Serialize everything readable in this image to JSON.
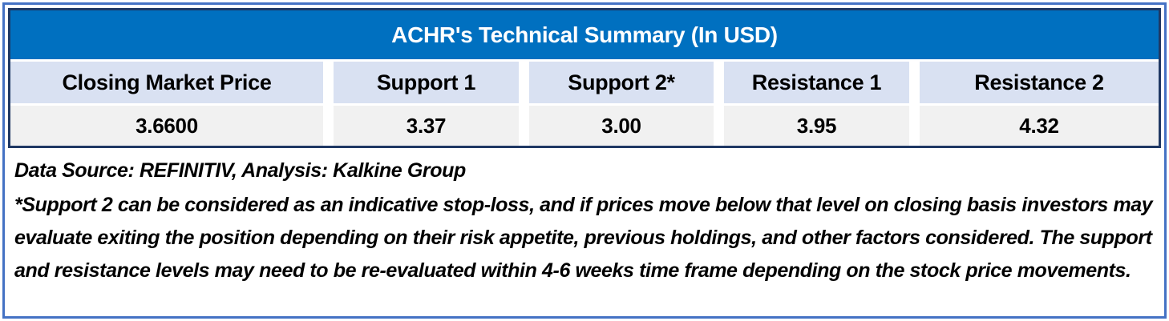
{
  "table": {
    "title": "ACHR's Technical Summary (In USD)",
    "columns": [
      {
        "header": "Closing Market Price",
        "value": "3.6600"
      },
      {
        "header": "Support 1",
        "value": "3.37"
      },
      {
        "header": "Support 2*",
        "value": "3.00"
      },
      {
        "header": "Resistance 1",
        "value": "3.95"
      },
      {
        "header": "Resistance 2",
        "value": "4.32"
      }
    ]
  },
  "notes": {
    "source_line": "Data Source: REFINITIV, Analysis: Kalkine Group",
    "disclaimer": "*Support 2 can be considered as an indicative stop-loss, and if prices move below that level on closing basis investors may evaluate exiting the position depending on their risk appetite, previous holdings, and other factors considered. The support and resistance levels may need to be re-evaluated within 4-6 weeks time frame depending on the stock price movements."
  },
  "colors": {
    "title_bg": "#0070C0",
    "title_text": "#FFFFFF",
    "header_row_bg": "#D9E1F2",
    "value_row_bg": "#F1F1F1",
    "table_border": "#1F3864",
    "outer_border": "#4472C4",
    "body_text": "#000000"
  }
}
